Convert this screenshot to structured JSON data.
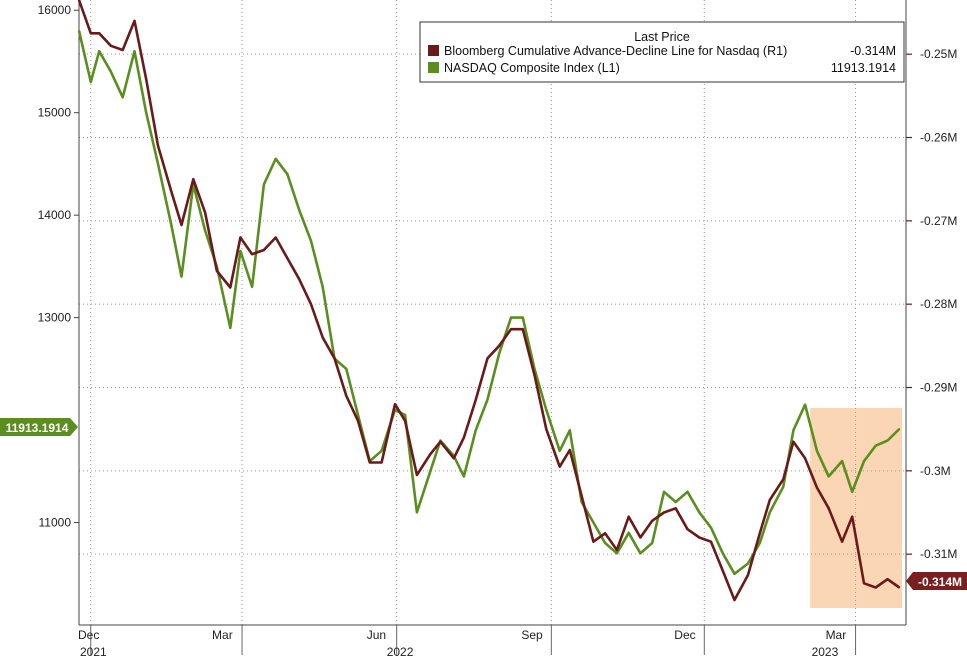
{
  "chart_data": {
    "type": "line",
    "title": "",
    "xlabel": "",
    "ylabel_left": "",
    "ylabel_right": "",
    "left_axis": {
      "ylim": [
        10000,
        16100
      ],
      "ticks": [
        11000,
        13000,
        14000,
        15000,
        16000
      ],
      "tick_labels": [
        "11000",
        "13000",
        "14000",
        "15000",
        "16000"
      ]
    },
    "right_axis": {
      "ylim": [
        -0.3185,
        -0.2435
      ],
      "ticks": [
        -0.25,
        -0.26,
        -0.27,
        -0.28,
        -0.29,
        -0.3,
        -0.31
      ],
      "tick_labels": [
        "-0.25M",
        "-0.26M",
        "-0.27M",
        "-0.28M",
        "-0.29M",
        "-0.3M",
        "-0.31M"
      ]
    },
    "x_axis": {
      "range": [
        "2021-11-24",
        "2023-03-31"
      ],
      "ticks": [
        {
          "date": "2021-12-01",
          "label": "Dec"
        },
        {
          "date": "2022-03-01",
          "label": "Mar"
        },
        {
          "date": "2022-06-01",
          "label": "Jun"
        },
        {
          "date": "2022-09-01",
          "label": "Sep"
        },
        {
          "date": "2022-12-01",
          "label": "Dec"
        },
        {
          "date": "2023-03-01",
          "label": "Mar"
        }
      ],
      "year_labels": [
        {
          "date": "2021-12-01",
          "label": "2021"
        },
        {
          "date": "2022-06-01",
          "label": "2022"
        },
        {
          "date": "2023-03-01",
          "label": "2023"
        }
      ]
    },
    "grid": true,
    "legend": {
      "placement": "top-right",
      "header": "Last Price",
      "entries": [
        {
          "label": "Bloomberg Cumulative Advance-Decline Line for Nasdaq  (R1)",
          "value": "-0.314M",
          "color": "#6b1a1a"
        },
        {
          "label": "NASDAQ Composite Index  (L1)",
          "value": "11913.1914",
          "color": "#5a8f1f"
        }
      ]
    },
    "last_value_tags": {
      "left": {
        "text": "11913.1914",
        "color": "#5a8f1f"
      },
      "right": {
        "text": "-0.314M",
        "color": "#7a1f1f"
      }
    },
    "highlight": {
      "start": "2023-02-02",
      "end": "2023-03-31",
      "color": "#f9cfa7"
    },
    "series": [
      {
        "name": "NASDAQ Composite Index  (L1)",
        "axis": "left",
        "color": "#5a8f1f",
        "x": [
          "2021-11-24",
          "2021-12-01",
          "2021-12-06",
          "2021-12-13",
          "2021-12-20",
          "2021-12-27",
          "2022-01-03",
          "2022-01-10",
          "2022-01-18",
          "2022-01-24",
          "2022-01-31",
          "2022-02-07",
          "2022-02-14",
          "2022-02-22",
          "2022-02-28",
          "2022-03-07",
          "2022-03-14",
          "2022-03-21",
          "2022-03-28",
          "2022-04-04",
          "2022-04-11",
          "2022-04-18",
          "2022-04-25",
          "2022-05-02",
          "2022-05-09",
          "2022-05-16",
          "2022-05-23",
          "2022-05-31",
          "2022-06-06",
          "2022-06-13",
          "2022-06-21",
          "2022-06-27",
          "2022-07-05",
          "2022-07-11",
          "2022-07-18",
          "2022-07-25",
          "2022-08-01",
          "2022-08-08",
          "2022-08-15",
          "2022-08-22",
          "2022-08-29",
          "2022-09-06",
          "2022-09-12",
          "2022-09-19",
          "2022-09-26",
          "2022-10-03",
          "2022-10-10",
          "2022-10-17",
          "2022-10-24",
          "2022-10-31",
          "2022-11-07",
          "2022-11-14",
          "2022-11-21",
          "2022-11-28",
          "2022-12-05",
          "2022-12-12",
          "2022-12-19",
          "2022-12-27",
          "2023-01-03",
          "2023-01-09",
          "2023-01-17",
          "2023-01-23",
          "2023-01-30",
          "2023-02-06",
          "2023-02-13",
          "2023-02-21",
          "2023-02-27",
          "2023-03-06",
          "2023-03-13",
          "2023-03-20",
          "2023-03-27"
        ],
        "values": [
          15800,
          15300,
          15600,
          15400,
          15150,
          15600,
          15000,
          14500,
          13900,
          13400,
          14300,
          13850,
          13500,
          12900,
          13650,
          13300,
          14300,
          14550,
          14400,
          14050,
          13750,
          13300,
          12600,
          12500,
          12050,
          11600,
          11700,
          12100,
          12050,
          11100,
          11500,
          11800,
          11650,
          11450,
          11900,
          12200,
          12650,
          13000,
          13000,
          12500,
          12100,
          11700,
          11900,
          11200,
          11000,
          10800,
          10700,
          10900,
          10700,
          10800,
          11300,
          11200,
          11300,
          11100,
          10950,
          10700,
          10500,
          10600,
          10800,
          11100,
          11350,
          11900,
          12150,
          11700,
          11450,
          11600,
          11300,
          11600,
          11750,
          11800,
          11913.1914
        ]
      },
      {
        "name": "Bloomberg Cumulative Advance-Decline Line for Nasdaq  (R1)",
        "axis": "right",
        "color": "#6b1a1a",
        "x": [
          "2021-11-24",
          "2021-12-01",
          "2021-12-06",
          "2021-12-13",
          "2021-12-20",
          "2021-12-27",
          "2022-01-03",
          "2022-01-10",
          "2022-01-18",
          "2022-01-24",
          "2022-01-31",
          "2022-02-07",
          "2022-02-14",
          "2022-02-22",
          "2022-02-28",
          "2022-03-07",
          "2022-03-14",
          "2022-03-21",
          "2022-03-28",
          "2022-04-04",
          "2022-04-11",
          "2022-04-18",
          "2022-04-25",
          "2022-05-02",
          "2022-05-09",
          "2022-05-16",
          "2022-05-23",
          "2022-05-31",
          "2022-06-06",
          "2022-06-13",
          "2022-06-21",
          "2022-06-27",
          "2022-07-05",
          "2022-07-11",
          "2022-07-18",
          "2022-07-25",
          "2022-08-01",
          "2022-08-08",
          "2022-08-15",
          "2022-08-22",
          "2022-08-29",
          "2022-09-06",
          "2022-09-12",
          "2022-09-19",
          "2022-09-26",
          "2022-10-03",
          "2022-10-10",
          "2022-10-17",
          "2022-10-24",
          "2022-10-31",
          "2022-11-07",
          "2022-11-14",
          "2022-11-21",
          "2022-11-28",
          "2022-12-05",
          "2022-12-12",
          "2022-12-19",
          "2022-12-27",
          "2023-01-03",
          "2023-01-09",
          "2023-01-17",
          "2023-01-23",
          "2023-01-30",
          "2023-02-06",
          "2023-02-13",
          "2023-02-21",
          "2023-02-27",
          "2023-03-06",
          "2023-03-13",
          "2023-03-20",
          "2023-03-27"
        ],
        "values": [
          -0.2435,
          -0.2475,
          -0.2475,
          -0.249,
          -0.2495,
          -0.246,
          -0.253,
          -0.261,
          -0.2665,
          -0.2705,
          -0.265,
          -0.269,
          -0.276,
          -0.278,
          -0.272,
          -0.274,
          -0.2735,
          -0.272,
          -0.2745,
          -0.277,
          -0.28,
          -0.284,
          -0.2865,
          -0.291,
          -0.294,
          -0.299,
          -0.299,
          -0.292,
          -0.294,
          -0.3005,
          -0.298,
          -0.2965,
          -0.2985,
          -0.296,
          -0.2915,
          -0.2865,
          -0.285,
          -0.283,
          -0.283,
          -0.2885,
          -0.295,
          -0.2995,
          -0.2975,
          -0.303,
          -0.3085,
          -0.3075,
          -0.3095,
          -0.3055,
          -0.308,
          -0.306,
          -0.305,
          -0.3045,
          -0.307,
          -0.308,
          -0.3085,
          -0.312,
          -0.3155,
          -0.3125,
          -0.3075,
          -0.3035,
          -0.301,
          -0.2965,
          -0.2985,
          -0.302,
          -0.3045,
          -0.3085,
          -0.3055,
          -0.3135,
          -0.314,
          -0.313,
          -0.314
        ]
      }
    ]
  }
}
